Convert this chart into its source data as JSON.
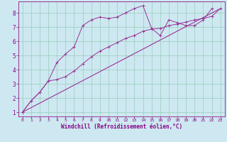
{
  "xlabel": "Windchill (Refroidissement éolien,°C)",
  "bg_color": "#cde8f0",
  "grid_color": "#99ccbb",
  "line_color": "#993399",
  "spine_color": "#993399",
  "xlim": [
    -0.5,
    23.5
  ],
  "ylim": [
    0.7,
    8.8
  ],
  "xticks": [
    0,
    1,
    2,
    3,
    4,
    5,
    6,
    7,
    8,
    9,
    10,
    11,
    12,
    13,
    14,
    15,
    16,
    17,
    18,
    19,
    20,
    21,
    22,
    23
  ],
  "yticks": [
    1,
    2,
    3,
    4,
    5,
    6,
    7,
    8
  ],
  "line1_x": [
    0,
    1,
    2,
    3,
    4,
    5,
    6,
    7,
    8,
    9,
    10,
    11,
    12,
    13,
    14,
    15,
    16,
    17,
    18,
    19,
    20,
    21,
    22,
    23
  ],
  "line1_y": [
    1.0,
    1.8,
    2.4,
    3.2,
    4.5,
    5.1,
    5.6,
    7.1,
    7.5,
    7.7,
    7.6,
    7.7,
    8.0,
    8.3,
    8.5,
    6.9,
    6.4,
    7.5,
    7.3,
    7.1,
    7.1,
    7.5,
    8.3,
    null
  ],
  "line2_x": [
    0,
    1,
    2,
    3,
    4,
    5,
    6,
    7,
    8,
    9,
    10,
    11,
    12,
    13,
    14,
    15,
    16,
    17,
    18,
    19,
    20,
    21,
    22,
    23
  ],
  "line2_y": [
    1.0,
    1.8,
    2.4,
    3.2,
    3.3,
    3.5,
    3.9,
    4.4,
    4.9,
    5.3,
    5.6,
    5.9,
    6.2,
    6.4,
    6.7,
    6.85,
    6.9,
    7.1,
    7.2,
    7.35,
    7.5,
    7.6,
    7.75,
    8.3
  ],
  "line3_x": [
    0,
    23
  ],
  "line3_y": [
    1.0,
    8.3
  ],
  "font_color": "#880088",
  "xlabel_fontsize": 5.5,
  "xtick_fontsize": 4.5,
  "ytick_fontsize": 5.5
}
